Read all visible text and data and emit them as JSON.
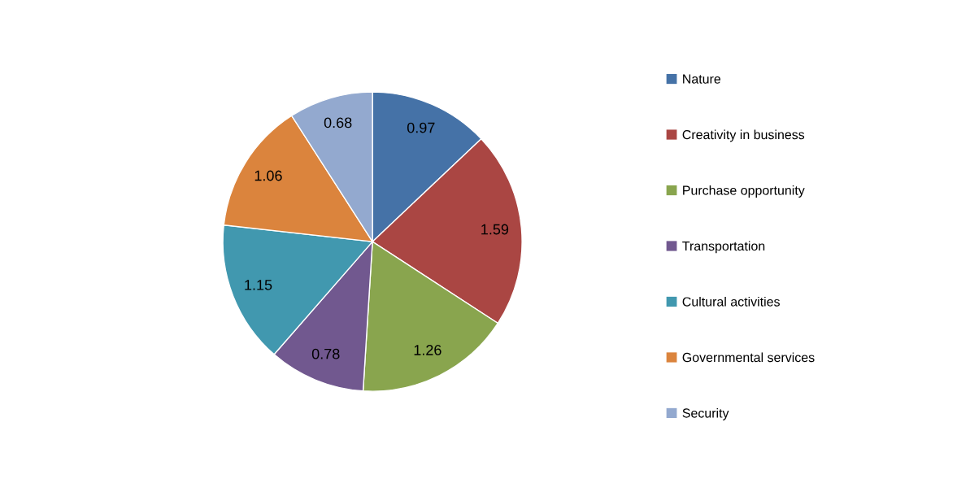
{
  "chart_data": {
    "type": "pie",
    "categories": [
      "Nature",
      "Creativity in business",
      "Purchase opportunity",
      "Transportation",
      "Cultural activities",
      "Governmental services",
      "Security"
    ],
    "values": [
      0.97,
      1.59,
      1.26,
      0.78,
      1.15,
      1.06,
      0.68
    ],
    "colors": [
      "#4572a7",
      "#aa4643",
      "#89a54e",
      "#71588f",
      "#4198af",
      "#db843d",
      "#93a9cf"
    ],
    "data_labels": true,
    "legend": "right"
  }
}
